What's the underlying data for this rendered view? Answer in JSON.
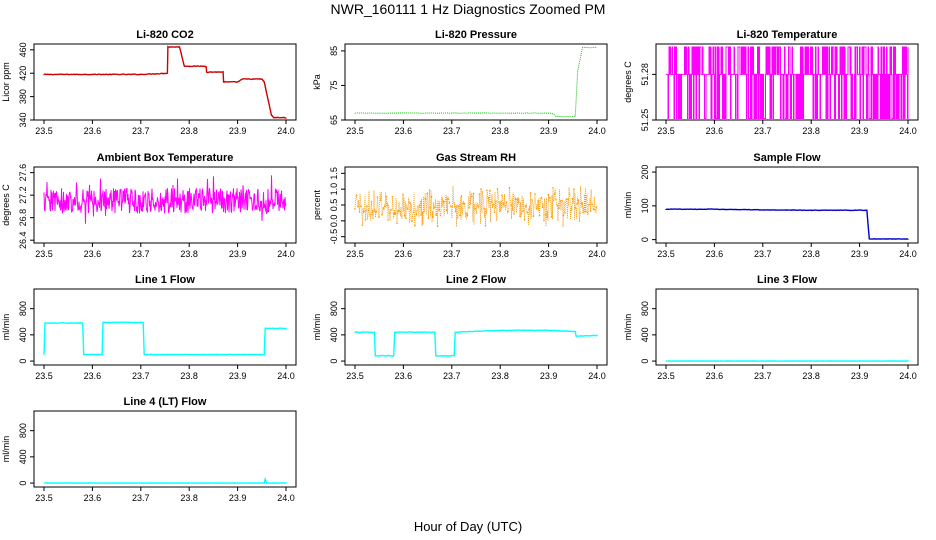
{
  "title": "NWR_160111  1 Hz Diagnostics Zoomed PM",
  "xlabel": "Hour of Day (UTC)",
  "chart_data": [
    {
      "type": "line",
      "title": "Li-820 CO2",
      "ylabel": "Licor ppm",
      "color": "#cc0000",
      "xlim": [
        23.5,
        24.0
      ],
      "ylim": [
        340,
        470
      ],
      "x_ticks": [
        "23.5",
        "23.6",
        "23.7",
        "23.8",
        "23.9",
        "24.0"
      ],
      "y_ticks": [
        "340",
        "380",
        "420",
        "460"
      ],
      "series": [
        {
          "x": [
            23.5,
            23.55,
            23.6,
            23.65,
            23.7,
            23.755,
            23.756,
            23.78,
            23.79,
            23.8,
            23.835,
            23.836,
            23.87,
            23.871,
            23.9,
            23.91,
            23.95,
            23.955,
            23.97,
            23.975,
            24.0
          ],
          "y": [
            418,
            418,
            418,
            418,
            418,
            420,
            465,
            465,
            432,
            432,
            432,
            422,
            422,
            405,
            405,
            410,
            410,
            405,
            348,
            344,
            344
          ]
        }
      ]
    },
    {
      "type": "line",
      "title": "Li-820 Pressure",
      "ylabel": "kPa",
      "color": "#00cc00",
      "xlim": [
        23.5,
        24.0
      ],
      "ylim": [
        65,
        87
      ],
      "x_ticks": [
        "23.5",
        "23.6",
        "23.7",
        "23.8",
        "23.9",
        "24.0"
      ],
      "y_ticks": [
        "65",
        "75",
        "85"
      ],
      "series": [
        {
          "x": [
            23.5,
            23.6,
            23.7,
            23.8,
            23.9,
            23.91,
            23.915,
            23.95,
            23.955,
            23.96,
            23.97,
            23.98,
            24.0
          ],
          "y": [
            67,
            67,
            67,
            67,
            67,
            66.8,
            66,
            66,
            66,
            79,
            86,
            86,
            86
          ]
        }
      ]
    },
    {
      "type": "line",
      "title": "Li-820 Temperature",
      "ylabel": "degrees C",
      "color": "#ff00ff",
      "xlim": [
        23.5,
        24.0
      ],
      "ylim": [
        51.25,
        51.3
      ],
      "x_ticks": [
        "23.5",
        "23.6",
        "23.7",
        "23.8",
        "23.9",
        "24.0"
      ],
      "y_ticks": [
        "51.25",
        "51.28"
      ],
      "series": [
        {
          "x": [
            23.5,
            23.6,
            23.7,
            23.8,
            23.9,
            24.0
          ],
          "y": [
            51.275,
            51.275,
            51.275,
            51.275,
            51.275,
            51.275
          ]
        }
      ]
    },
    {
      "type": "line",
      "title": "Ambient Box Temperature",
      "ylabel": "degrees C",
      "color": "#ff00ff",
      "xlim": [
        23.5,
        24.0
      ],
      "ylim": [
        26.35,
        27.7
      ],
      "x_ticks": [
        "23.5",
        "23.6",
        "23.7",
        "23.8",
        "23.9",
        "24.0"
      ],
      "y_ticks": [
        "26.4",
        "26.8",
        "27.2",
        "27.6"
      ],
      "series": [
        {
          "x": [
            23.5,
            23.6,
            23.7,
            23.8,
            23.9,
            24.0
          ],
          "y": [
            27.1,
            27.1,
            27.1,
            27.1,
            27.1,
            27.1
          ]
        }
      ]
    },
    {
      "type": "scatter",
      "title": "Gas Stream RH",
      "ylabel": "percent",
      "color": "#ff9900",
      "xlim": [
        23.5,
        24.0
      ],
      "ylim": [
        -0.7,
        1.7
      ],
      "x_ticks": [
        "23.5",
        "23.6",
        "23.7",
        "23.8",
        "23.9",
        "24.0"
      ],
      "y_ticks": [
        "-0.5",
        "0.0",
        "0.5",
        "1.0",
        "1.5"
      ],
      "series": [
        {
          "x": [
            23.5,
            23.6,
            23.7,
            23.8,
            23.9,
            24.0
          ],
          "y": [
            0.45,
            0.4,
            0.45,
            0.5,
            0.5,
            0.5
          ]
        }
      ]
    },
    {
      "type": "line",
      "title": "Sample Flow",
      "ylabel": "ml/min",
      "color": "#0000cc",
      "xlim": [
        23.5,
        24.0
      ],
      "ylim": [
        -10,
        215
      ],
      "x_ticks": [
        "23.5",
        "23.6",
        "23.7",
        "23.8",
        "23.9",
        "24.0"
      ],
      "y_ticks": [
        "0",
        "100",
        "200"
      ],
      "series": [
        {
          "x": [
            23.5,
            23.6,
            23.7,
            23.8,
            23.9,
            23.915,
            23.92,
            23.93,
            24.0
          ],
          "y": [
            90,
            90,
            88,
            87,
            87,
            87,
            2,
            2,
            2
          ]
        }
      ]
    },
    {
      "type": "line",
      "title": "Line 1 Flow",
      "ylabel": "ml/min",
      "color": "#00ffff",
      "xlim": [
        23.5,
        24.0
      ],
      "ylim": [
        -60,
        1100
      ],
      "x_ticks": [
        "23.5",
        "23.6",
        "23.7",
        "23.8",
        "23.9",
        "24.0"
      ],
      "y_ticks": [
        "0",
        "400",
        "800"
      ],
      "series": [
        {
          "x": [
            23.5,
            23.502,
            23.58,
            23.582,
            23.62,
            23.622,
            23.705,
            23.707,
            23.8,
            23.9,
            23.955,
            23.957,
            24.0
          ],
          "y": [
            100,
            580,
            580,
            100,
            100,
            590,
            590,
            100,
            100,
            100,
            100,
            500,
            500
          ]
        }
      ]
    },
    {
      "type": "line",
      "title": "Line 2 Flow",
      "ylabel": "ml/min",
      "color": "#00ffff",
      "xlim": [
        23.5,
        24.0
      ],
      "ylim": [
        -60,
        1100
      ],
      "x_ticks": [
        "23.5",
        "23.6",
        "23.7",
        "23.8",
        "23.9",
        "24.0"
      ],
      "y_ticks": [
        "0",
        "400",
        "800"
      ],
      "series": [
        {
          "x": [
            23.5,
            23.54,
            23.542,
            23.58,
            23.582,
            23.665,
            23.667,
            23.705,
            23.707,
            23.8,
            23.9,
            23.955,
            23.957,
            24.0
          ],
          "y": [
            440,
            440,
            80,
            80,
            440,
            440,
            80,
            80,
            440,
            470,
            470,
            450,
            380,
            390
          ]
        }
      ]
    },
    {
      "type": "line",
      "title": "Line 3 Flow",
      "ylabel": "ml/min",
      "color": "#00ffff",
      "xlim": [
        23.5,
        24.0
      ],
      "ylim": [
        -60,
        1100
      ],
      "x_ticks": [
        "23.5",
        "23.6",
        "23.7",
        "23.8",
        "23.9",
        "24.0"
      ],
      "y_ticks": [
        "0",
        "400",
        "800"
      ],
      "series": [
        {
          "x": [
            23.5,
            23.6,
            23.7,
            23.8,
            23.9,
            24.0
          ],
          "y": [
            0,
            0,
            0,
            0,
            0,
            0
          ]
        }
      ]
    },
    {
      "type": "line",
      "title": "Line 4 (LT) Flow",
      "ylabel": "ml/min",
      "color": "#00ffff",
      "xlim": [
        23.5,
        24.0
      ],
      "ylim": [
        -60,
        1100
      ],
      "x_ticks": [
        "23.5",
        "23.6",
        "23.7",
        "23.8",
        "23.9",
        "24.0"
      ],
      "y_ticks": [
        "0",
        "400",
        "800"
      ],
      "series": [
        {
          "x": [
            23.5,
            23.6,
            23.7,
            23.8,
            23.9,
            23.955,
            23.957,
            23.96,
            24.0
          ],
          "y": [
            0,
            0,
            0,
            0,
            0,
            0,
            60,
            0,
            0
          ]
        }
      ]
    }
  ]
}
